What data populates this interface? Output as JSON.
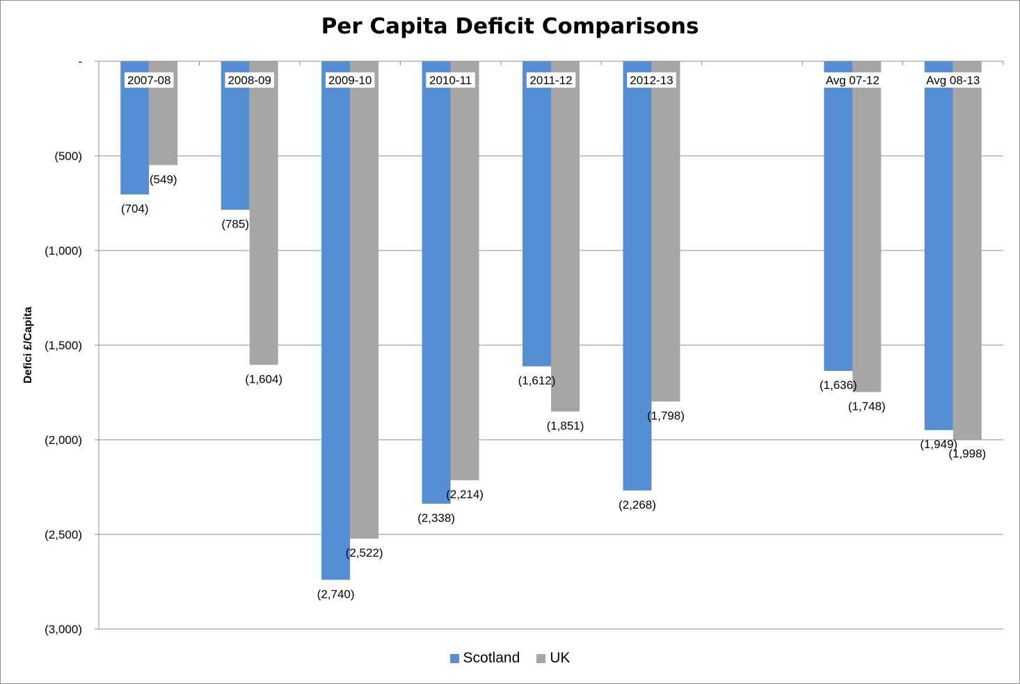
{
  "chart_data": {
    "type": "bar",
    "title": "Per Capita Deficit Comparisons",
    "xlabel": "",
    "ylabel": "Defici £/Capita",
    "ylim": [
      -3000,
      0
    ],
    "yticks": [
      0,
      -500,
      -1000,
      -1500,
      -2000,
      -2500,
      -3000
    ],
    "ytick_labels": [
      "-",
      "(500)",
      "(1,000)",
      "(1,500)",
      "(2,000)",
      "(2,500)",
      "(3,000)"
    ],
    "categories": [
      "2007-08",
      "2008-09",
      "2009-10",
      "2010-11",
      "2011-12",
      "2012-13",
      "",
      "Avg 07-12",
      "Avg 08-13"
    ],
    "series": [
      {
        "name": "Scotland",
        "color": "#558ed5",
        "values": [
          -704,
          -785,
          -2740,
          -2338,
          -1612,
          -2268,
          null,
          -1636,
          -1949
        ],
        "labels": [
          "(704)",
          "(785)",
          "(2,740)",
          "(2,338)",
          "(1,612)",
          "(2,268)",
          "",
          "(1,636)",
          "(1,949)"
        ]
      },
      {
        "name": "UK",
        "color": "#a6a6a6",
        "values": [
          -549,
          -1604,
          -2522,
          -2214,
          -1851,
          -1798,
          null,
          -1748,
          -1998
        ],
        "labels": [
          "(549)",
          "(1,604)",
          "(2,522)",
          "(2,214)",
          "(1,851)",
          "(1,798)",
          "",
          "(1,748)",
          "(1,998)"
        ]
      }
    ],
    "grid": true,
    "legend_position": "bottom"
  },
  "legend": {
    "scotland": "Scotland",
    "uk": "UK"
  }
}
